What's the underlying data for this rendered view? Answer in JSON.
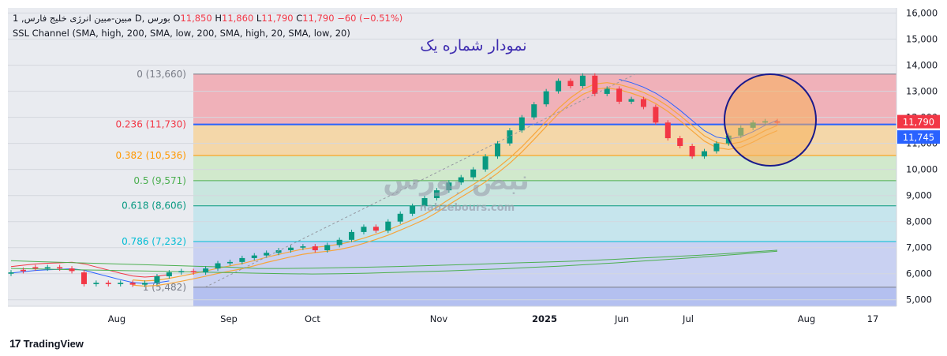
{
  "legend": {
    "line1_prefix": "1 ,مبین-مبین انرژی خلیج فارس",
    "line1_exchange": "D, بورس",
    "open_label": "O",
    "open_value": "11,850",
    "high_label": "H",
    "high_value": "11,860",
    "low_label": "L",
    "low_value": "11,790",
    "close_label": "C",
    "close_value": "11,790",
    "change": "−60 (−0.51%)",
    "indicator": "SSL Channel (SMA, high, 200, SMA, low, 200, SMA, high, 20, SMA, low, 20)"
  },
  "annotation_title": "نمودار شماره یک",
  "watermark": {
    "text": "نبض بورس",
    "url": "nabzebours.com"
  },
  "brand": {
    "logo": "17",
    "name": "TradingView"
  },
  "colors": {
    "up": "#089981",
    "down": "#f23645",
    "blue_line": "#2962ff",
    "orange": "#f7a53b",
    "circle": "#1a1a8c",
    "circle_fill": "#f7b05b"
  },
  "chart_data": {
    "type": "candlestick",
    "x_ticks": [
      "Aug",
      "Sep",
      "Oct",
      "Nov",
      "2025",
      "Jun",
      "Jul",
      "Aug",
      "17"
    ],
    "y_ticks": [
      "5,000",
      "6,000",
      "7,000",
      "8,000",
      "9,000",
      "10,000",
      "11,000",
      "12,000",
      "13,000",
      "14,000",
      "15,000",
      "16,000"
    ],
    "ylim": [
      4750,
      16200
    ],
    "fib_levels": [
      {
        "ratio": "0",
        "value": 13660,
        "label": "0 (13,660)",
        "color": "#787b86"
      },
      {
        "ratio": "0.236",
        "value": 11730,
        "label": "0.236 (11,730)",
        "color": "#f23645"
      },
      {
        "ratio": "0.382",
        "value": 10536,
        "label": "0.382 (10,536)",
        "color": "#ff9800"
      },
      {
        "ratio": "0.5",
        "value": 9571,
        "label": "0.5 (9,571)",
        "color": "#4caf50"
      },
      {
        "ratio": "0.618",
        "value": 8606,
        "label": "0.618 (8,606)",
        "color": "#089981"
      },
      {
        "ratio": "0.786",
        "value": 7232,
        "label": "0.786 (7,232)",
        "color": "#00bcd4"
      },
      {
        "ratio": "1",
        "value": 5482,
        "label": "1 (5,482)",
        "color": "#787b86"
      }
    ],
    "price_labels": [
      {
        "value": 11790,
        "text": "11,790",
        "color": "#f23645"
      },
      {
        "value": 11745,
        "text": "11,745",
        "color": "#2962ff"
      }
    ],
    "price_path": [
      [
        6000,
        6050
      ],
      [
        6150,
        6100
      ],
      [
        6250,
        6200
      ],
      [
        6200,
        6250
      ],
      [
        6250,
        6200
      ],
      [
        6200,
        6100
      ],
      [
        6050,
        5600
      ],
      [
        5600,
        5650
      ],
      [
        5650,
        5600
      ],
      [
        5600,
        5650
      ],
      [
        5650,
        5580
      ],
      [
        5580,
        5650
      ],
      [
        5650,
        5900
      ],
      [
        5900,
        6050
      ],
      [
        6050,
        6100
      ],
      [
        6100,
        6050
      ],
      [
        6050,
        6200
      ],
      [
        6200,
        6400
      ],
      [
        6400,
        6450
      ],
      [
        6450,
        6600
      ],
      [
        6600,
        6700
      ],
      [
        6700,
        6800
      ],
      [
        6800,
        6900
      ],
      [
        6900,
        7000
      ],
      [
        7000,
        7050
      ],
      [
        7050,
        6900
      ],
      [
        6900,
        7100
      ],
      [
        7100,
        7300
      ],
      [
        7300,
        7600
      ],
      [
        7600,
        7800
      ],
      [
        7800,
        7650
      ],
      [
        7650,
        8000
      ],
      [
        8000,
        8300
      ],
      [
        8300,
        8600
      ],
      [
        8600,
        8900
      ],
      [
        8900,
        9200
      ],
      [
        9200,
        9500
      ],
      [
        9500,
        9700
      ],
      [
        9700,
        10000
      ],
      [
        10000,
        10500
      ],
      [
        10500,
        11000
      ],
      [
        11000,
        11500
      ],
      [
        11500,
        12000
      ],
      [
        12000,
        12500
      ],
      [
        12500,
        13000
      ],
      [
        13000,
        13400
      ],
      [
        13400,
        13200
      ],
      [
        13200,
        13600
      ],
      [
        13600,
        12900
      ],
      [
        12900,
        13100
      ],
      [
        13100,
        12600
      ],
      [
        12600,
        12700
      ],
      [
        12700,
        12400
      ],
      [
        12400,
        11800
      ],
      [
        11800,
        11200
      ],
      [
        11200,
        10900
      ],
      [
        10900,
        10500
      ],
      [
        10500,
        10700
      ],
      [
        10700,
        11000
      ],
      [
        11000,
        11300
      ],
      [
        11300,
        11600
      ],
      [
        11600,
        11800
      ],
      [
        11800,
        11850
      ],
      [
        11850,
        11790
      ]
    ],
    "ssl_long_blue": [
      6500,
      6460,
      6430,
      6400,
      6370,
      6340,
      6310,
      6280,
      6250,
      6200,
      6200,
      6210,
      6230,
      6250,
      6270,
      6300,
      6330,
      6360,
      6400,
      6430,
      6460,
      6500,
      6550,
      6600,
      6650,
      6700,
      6760,
      6830,
      6900
    ],
    "ssl_long_green": [
      6200,
      6180,
      6160,
      6140,
      6120,
      6100,
      6080,
      6060,
      6040,
      6020,
      6000,
      5990,
      6000,
      6020,
      6050,
      6080,
      6110,
      6150,
      6190,
      6240,
      6290,
      6350,
      6410,
      6480,
      6550,
      6620,
      6700,
      6780,
      6860
    ]
  }
}
